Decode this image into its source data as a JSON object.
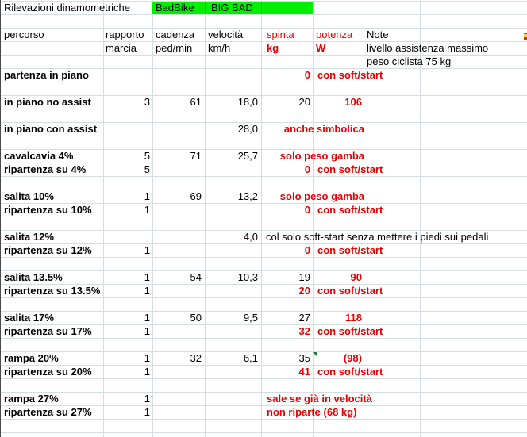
{
  "top": {
    "title": "Rilevazioni dinamometriche",
    "brand_left": "BadBike",
    "brand_right": "BIG BAD"
  },
  "header": {
    "a": "percorso",
    "b1": "rapporto",
    "b2": "marcia",
    "c1": "cadenza",
    "c2": "ped/min",
    "d1": "velocità",
    "d2": "km/h",
    "e1": "spinta",
    "e2": "kg",
    "f1": "potenza",
    "f2": "W",
    "g1": "Note",
    "g2": "livello assistenza massimo",
    "g3": "peso ciclista 75 kg"
  },
  "rows": [
    {
      "row": 6,
      "label": "partenza in piano",
      "e": "0",
      "e_red": true,
      "f_note": "con soft/start"
    },
    {
      "row": 8,
      "label": "in piano no assist",
      "b": "3",
      "c": "61",
      "d": "18,0",
      "e": "20",
      "f": "106"
    },
    {
      "row": 10,
      "label": "in piano con assist",
      "d": "28,0",
      "ef_note": "anche simbolica"
    },
    {
      "row": 12,
      "label": "cavalcavia 4%",
      "b": "5",
      "c": "71",
      "d": "25,7",
      "ef_note": "solo peso gamba"
    },
    {
      "row": 13,
      "label": "ripartenza su 4%",
      "b": "5",
      "e": "0",
      "e_red": true,
      "f_note": "con soft/start"
    },
    {
      "row": 15,
      "label": "salita 10%",
      "b": "1",
      "c": "69",
      "d": "13,2",
      "ef_note": "solo peso gamba"
    },
    {
      "row": 16,
      "label": "ripartenza su 10%",
      "b": "1",
      "e": "0",
      "e_red": true,
      "f_note": "con soft/start"
    },
    {
      "row": 18,
      "label": "salita 12%",
      "d": "4,0",
      "black_note": "col solo soft-start senza mettere i piedi sui pedali"
    },
    {
      "row": 19,
      "label": "ripartenza su 12%",
      "b": "1",
      "e": "0",
      "e_red": true,
      "f_note": "con soft/start"
    },
    {
      "row": 21,
      "label": "salita 13.5%",
      "b": "1",
      "c": "54",
      "d": "10,3",
      "e": "19",
      "f": "90"
    },
    {
      "row": 22,
      "label": "ripartenza su 13.5%",
      "b": "1",
      "e": "20",
      "e_red": true,
      "f_note": "con soft/start"
    },
    {
      "row": 24,
      "label": "salita 17%",
      "b": "1",
      "c": "50",
      "d": "9,5",
      "e": "27",
      "f": "118"
    },
    {
      "row": 25,
      "label": "ripartenza su 17%",
      "b": "1",
      "e": "32",
      "e_red": true,
      "f_note": "con soft/start"
    },
    {
      "row": 27,
      "label": "rampa 20%",
      "b": "1",
      "c": "32",
      "d": "6,1",
      "e": "35",
      "f": "(98)",
      "flag": true
    },
    {
      "row": 28,
      "label": "ripartenza su 20%",
      "b": "1",
      "e": "41",
      "e_red": true,
      "f_note": "con soft/start"
    },
    {
      "row": 30,
      "label": "rampa 27%",
      "b": "1",
      "red_note": "sale se già in velocità"
    },
    {
      "row": 31,
      "label": "ripartenza su 27%",
      "b": "1",
      "red_note": "non riparte (68 kg)"
    }
  ],
  "colors": {
    "red": "#e60000",
    "green_fill": "#00ef00",
    "grid": "#d6dce4",
    "flag_green": "#217a36"
  }
}
